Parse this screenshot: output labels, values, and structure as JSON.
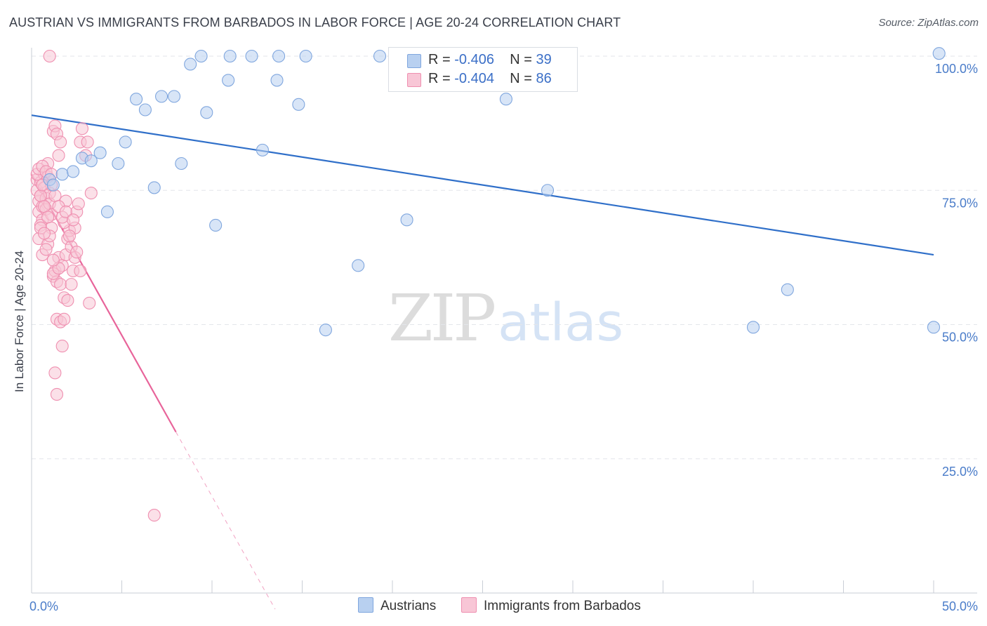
{
  "header": {
    "title": "AUSTRIAN VS IMMIGRANTS FROM BARBADOS IN LABOR FORCE | AGE 20-24 CORRELATION CHART",
    "source": "Source: ZipAtlas.com"
  },
  "legend_stats": {
    "r_label": "R =",
    "n_label": "N =",
    "austrians": {
      "r": "-0.406",
      "n": "39"
    },
    "barbados": {
      "r": "-0.404",
      "n": "86"
    }
  },
  "watermark": {
    "zip": "ZIP",
    "atlas": "atlas"
  },
  "colors": {
    "austrians_fill": "#b8d0f0",
    "austrians_stroke": "#7fa6de",
    "austrians_line": "#2f6fc9",
    "barbados_fill": "#f8c6d6",
    "barbados_stroke": "#ef8fb0",
    "barbados_line": "#e8649a",
    "grid": "#e3e6ea",
    "axis_text": "#4a7cc9"
  },
  "chart_data": {
    "type": "scatter",
    "title": "AUSTRIAN VS IMMIGRANTS FROM BARBADOS IN LABOR FORCE | AGE 20-24 CORRELATION CHART",
    "xlabel": "",
    "ylabel": "In Labor Force | Age 20-24",
    "xlim": [
      0,
      50
    ],
    "ylim": [
      0,
      102
    ],
    "x_tick_labels": [
      "0.0%",
      "50.0%"
    ],
    "y_ticks": [
      25,
      50,
      75,
      100
    ],
    "y_tick_labels": [
      "25.0%",
      "50.0%",
      "75.0%",
      "100.0%"
    ],
    "grid": true,
    "legend_position": "top-center",
    "series": [
      {
        "name": "Austrians",
        "points": [
          [
            1.0,
            77.0
          ],
          [
            1.2,
            76.0
          ],
          [
            1.7,
            78.0
          ],
          [
            2.3,
            78.5
          ],
          [
            2.8,
            81.0
          ],
          [
            3.3,
            80.5
          ],
          [
            3.8,
            82.0
          ],
          [
            4.2,
            71.0
          ],
          [
            4.8,
            80.0
          ],
          [
            5.2,
            84.0
          ],
          [
            5.8,
            92.0
          ],
          [
            6.3,
            90.0
          ],
          [
            6.8,
            75.5
          ],
          [
            7.2,
            92.5
          ],
          [
            7.9,
            92.5
          ],
          [
            8.3,
            80.0
          ],
          [
            8.8,
            98.5
          ],
          [
            9.4,
            100.0
          ],
          [
            9.7,
            89.5
          ],
          [
            10.2,
            68.5
          ],
          [
            10.9,
            95.5
          ],
          [
            11.0,
            100.0
          ],
          [
            12.2,
            100.0
          ],
          [
            12.8,
            82.5
          ],
          [
            13.6,
            95.5
          ],
          [
            13.7,
            100.0
          ],
          [
            14.8,
            91.0
          ],
          [
            15.2,
            100.0
          ],
          [
            16.3,
            49.0
          ],
          [
            18.1,
            61.0
          ],
          [
            19.3,
            100.0
          ],
          [
            20.8,
            69.5
          ],
          [
            26.3,
            92.0
          ],
          [
            26.8,
            100.0
          ],
          [
            28.6,
            75.0
          ],
          [
            40.0,
            49.5
          ],
          [
            41.9,
            56.5
          ],
          [
            50.0,
            49.5
          ],
          [
            50.3,
            100.5
          ]
        ],
        "trend": {
          "x": [
            0,
            50
          ],
          "y": [
            89.0,
            63.0
          ]
        }
      },
      {
        "name": "Immigrants from Barbados",
        "points": [
          [
            0.3,
            77.0
          ],
          [
            0.3,
            75.0
          ],
          [
            0.4,
            73.0
          ],
          [
            0.4,
            71.0
          ],
          [
            0.5,
            76.5
          ],
          [
            0.5,
            74.0
          ],
          [
            0.6,
            72.0
          ],
          [
            0.6,
            69.5
          ],
          [
            0.7,
            78.0
          ],
          [
            0.7,
            75.5
          ],
          [
            0.8,
            73.5
          ],
          [
            0.8,
            71.5
          ],
          [
            0.9,
            77.5
          ],
          [
            0.9,
            80.0
          ],
          [
            1.0,
            74.5
          ],
          [
            1.0,
            72.5
          ],
          [
            1.1,
            70.5
          ],
          [
            1.1,
            76.0
          ],
          [
            0.4,
            66.0
          ],
          [
            0.5,
            68.5
          ],
          [
            0.6,
            63.0
          ],
          [
            0.9,
            65.0
          ],
          [
            1.2,
            86.0
          ],
          [
            1.3,
            87.0
          ],
          [
            1.4,
            85.5
          ],
          [
            1.5,
            81.5
          ],
          [
            1.6,
            84.0
          ],
          [
            1.2,
            59.0
          ],
          [
            1.3,
            60.0
          ],
          [
            1.4,
            58.0
          ],
          [
            1.5,
            62.5
          ],
          [
            1.6,
            57.5
          ],
          [
            1.7,
            61.0
          ],
          [
            1.8,
            55.0
          ],
          [
            1.4,
            51.0
          ],
          [
            1.6,
            50.5
          ],
          [
            1.7,
            46.0
          ],
          [
            1.3,
            41.0
          ],
          [
            1.4,
            37.0
          ],
          [
            1.9,
            63.0
          ],
          [
            2.0,
            66.0
          ],
          [
            2.1,
            67.5
          ],
          [
            2.2,
            64.5
          ],
          [
            2.3,
            60.0
          ],
          [
            2.4,
            68.0
          ],
          [
            2.5,
            71.0
          ],
          [
            2.6,
            72.5
          ],
          [
            2.2,
            57.5
          ],
          [
            2.0,
            54.5
          ],
          [
            1.8,
            69.0
          ],
          [
            1.9,
            73.0
          ],
          [
            2.4,
            62.5
          ],
          [
            2.7,
            84.0
          ],
          [
            2.8,
            86.5
          ],
          [
            3.0,
            81.5
          ],
          [
            3.2,
            54.0
          ],
          [
            3.1,
            84.0
          ],
          [
            3.3,
            74.5
          ],
          [
            1.0,
            100.0
          ],
          [
            0.5,
            74.0
          ],
          [
            0.6,
            76.0
          ],
          [
            0.7,
            72.0
          ],
          [
            0.9,
            70.0
          ],
          [
            1.1,
            68.0
          ],
          [
            1.0,
            66.5
          ],
          [
            0.8,
            64.0
          ],
          [
            1.2,
            59.5
          ],
          [
            1.5,
            60.5
          ],
          [
            0.3,
            78.0
          ],
          [
            0.4,
            79.0
          ],
          [
            0.6,
            79.5
          ],
          [
            0.8,
            78.5
          ],
          [
            1.1,
            78.0
          ],
          [
            1.3,
            74.0
          ],
          [
            1.5,
            72.0
          ],
          [
            1.7,
            70.0
          ],
          [
            1.9,
            71.0
          ],
          [
            2.1,
            66.5
          ],
          [
            2.3,
            69.5
          ],
          [
            2.5,
            63.5
          ],
          [
            2.7,
            60.0
          ],
          [
            0.5,
            68.0
          ],
          [
            0.7,
            67.0
          ],
          [
            1.2,
            62.0
          ],
          [
            1.8,
            51.0
          ],
          [
            6.8,
            14.5
          ]
        ],
        "trend": {
          "x": [
            0,
            8.0
          ],
          "y": [
            78.0,
            30.0
          ]
        },
        "trend_extension": {
          "x": [
            8.0,
            13.5
          ],
          "y": [
            30.0,
            -3.0
          ]
        }
      }
    ]
  },
  "bottom_legend": {
    "austrians_label": "Austrians",
    "barbados_label": "Immigrants from Barbados"
  }
}
